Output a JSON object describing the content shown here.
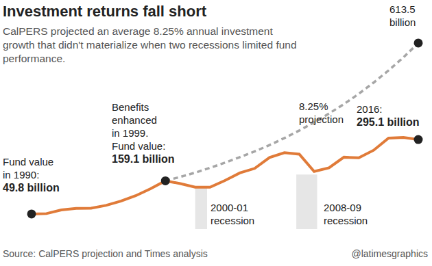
{
  "chart_data": {
    "type": "line",
    "title": "Investment returns fall short",
    "subtitle": "CalPERS projected an average 8.25% annual investment growth that didn't materialize when two recessions limited fund performance.",
    "source": "Source: CalPERS projection and Times analysis",
    "credit": "@latimesgraphics",
    "x": [
      1990,
      1991,
      1992,
      1993,
      1994,
      1995,
      1996,
      1997,
      1998,
      1999,
      2000,
      2001,
      2002,
      2003,
      2004,
      2005,
      2006,
      2007,
      2008,
      2009,
      2010,
      2011,
      2012,
      2013,
      2014,
      2015,
      2016
    ],
    "series": [
      {
        "color": "#e07b39",
        "line_style": "solid",
        "values": [
          49.8,
          51,
          63,
          68,
          69,
          78,
          92,
          110,
          133,
          159.1,
          150,
          138,
          138,
          160,
          185,
          200,
          236,
          252,
          247,
          190,
          202,
          237,
          235,
          260,
          300,
          302,
          295.1
        ]
      },
      {
        "color": "#a6a6a6",
        "line_style": "dashed",
        "values": [
          null,
          null,
          null,
          null,
          null,
          null,
          null,
          null,
          null,
          159.1,
          172,
          186,
          202,
          219,
          237,
          256,
          277,
          300,
          325,
          352,
          381,
          412,
          446,
          483,
          523,
          566,
          613.5
        ]
      }
    ],
    "xlim": [
      1990,
      2016
    ],
    "ylim": [
      0,
      620
    ],
    "tick_labels": false,
    "grid": false,
    "annotations": [
      {
        "lines": [
          "Fund value",
          "in 1990:"
        ],
        "value_text": "49.8 billion",
        "x": 1990,
        "series": 0
      },
      {
        "lines": [
          "Benefits",
          "enhanced",
          "in 1999.",
          "Fund value:"
        ],
        "value_text": "159.1 billion",
        "x": 1999,
        "series": 0
      },
      {
        "lines": [
          "2016:"
        ],
        "value_text": "295.1 billion",
        "x": 2016,
        "series": 0
      },
      {
        "lines": [
          "613.5",
          "billion"
        ],
        "x": 2016,
        "series": 1
      },
      {
        "lines": [
          "8.25%",
          "projection"
        ]
      }
    ],
    "recessions": [
      {
        "lines": [
          "2000-01",
          "recession"
        ],
        "x": [
          2001,
          2001.8
        ],
        "y": [
          0,
          138
        ]
      },
      {
        "lines": [
          "2008-09",
          "recession"
        ],
        "x": [
          2007.8,
          2009.2
        ],
        "y": [
          0,
          180
        ]
      }
    ]
  }
}
